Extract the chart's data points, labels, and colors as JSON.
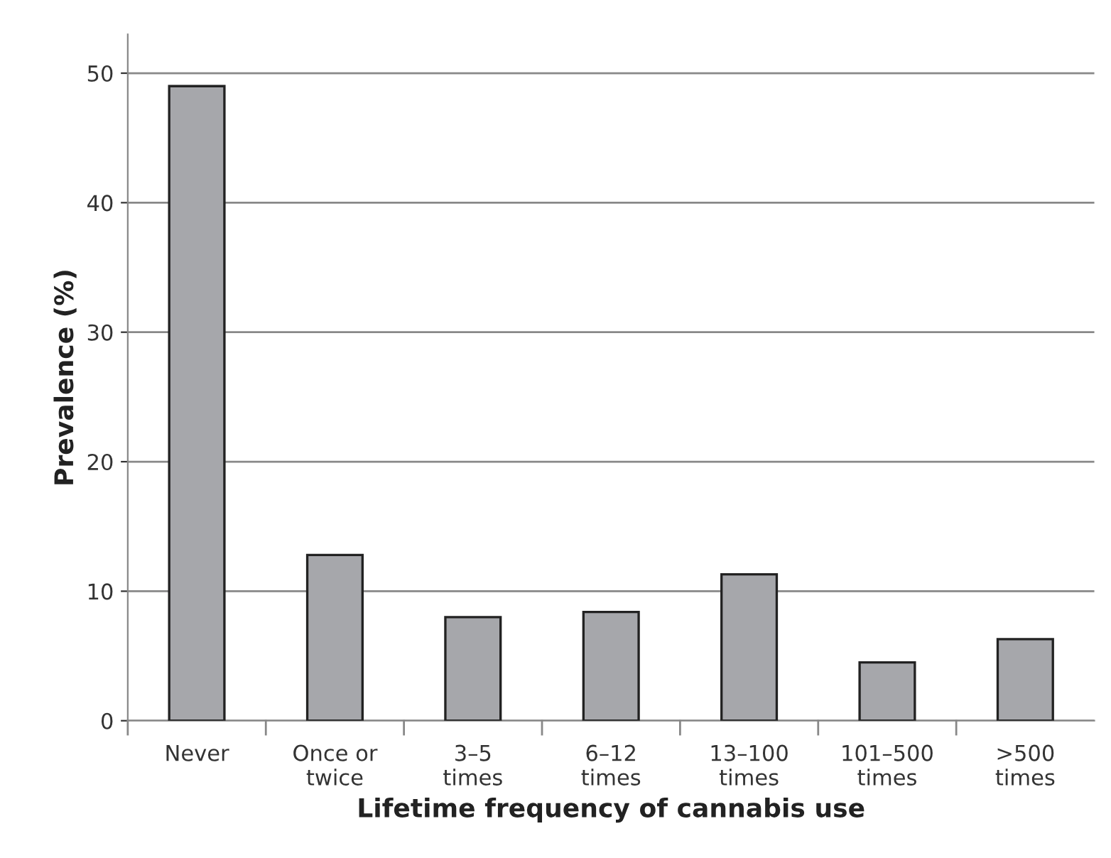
{
  "chart_data": {
    "type": "bar",
    "xlabel": "Lifetime frequency of cannabis use",
    "ylabel": "Prevalence (%)",
    "categories": [
      "Never",
      "Once or\ntwice",
      "3–5\ntimes",
      "6–12\ntimes",
      "13–100\ntimes",
      "101–500\ntimes",
      ">500\ntimes"
    ],
    "values": [
      49.0,
      12.8,
      8.0,
      8.4,
      11.3,
      4.5,
      6.3
    ],
    "color": "#a6a7ab",
    "ylim": [
      0,
      53
    ],
    "yticks": [
      0,
      10,
      20,
      30,
      40,
      50
    ],
    "grid": "y"
  }
}
